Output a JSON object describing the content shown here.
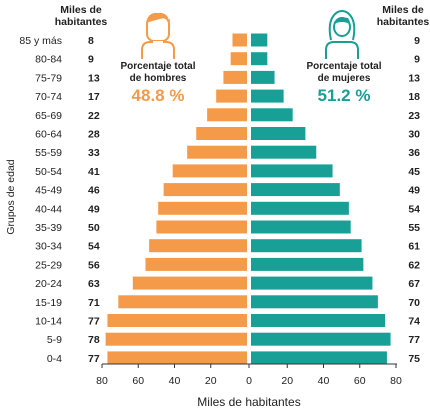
{
  "chart_data": {
    "type": "bar",
    "subtype": "population-pyramid",
    "categories": [
      "85 y más",
      "80-84",
      "75-79",
      "70-74",
      "65-69",
      "60-64",
      "55-59",
      "50-54",
      "45-49",
      "40-44",
      "35-39",
      "30-34",
      "25-29",
      "20-24",
      "15-19",
      "10-14",
      "5-9",
      "0-4"
    ],
    "series": [
      {
        "name": "Hombres",
        "values": [
          8,
          9,
          13,
          17,
          22,
          28,
          33,
          41,
          46,
          49,
          50,
          54,
          56,
          63,
          71,
          77,
          78,
          77
        ],
        "color": "#f59a48"
      },
      {
        "name": "Mujeres",
        "values": [
          9,
          9,
          13,
          18,
          23,
          30,
          36,
          45,
          49,
          54,
          55,
          61,
          62,
          67,
          70,
          74,
          77,
          75
        ],
        "color": "#18a096"
      }
    ],
    "xlabel": "Miles de habitantes",
    "ylabel": "Grupos de edad",
    "xlim": [
      -80,
      80
    ],
    "ticks": [
      "80",
      "60",
      "40",
      "20",
      "0",
      "20",
      "40",
      "60",
      "80"
    ],
    "left_column_header": "Miles de habitantes",
    "right_column_header": "Miles de habitantes",
    "annotations": {
      "men": {
        "label": "Porcentaje total de hombres",
        "value": "48.8 %",
        "icon": "man-icon"
      },
      "women": {
        "label": "Porcentaje total de mujeres",
        "value": "51.2 %",
        "icon": "woman-icon"
      }
    },
    "grid": false
  }
}
